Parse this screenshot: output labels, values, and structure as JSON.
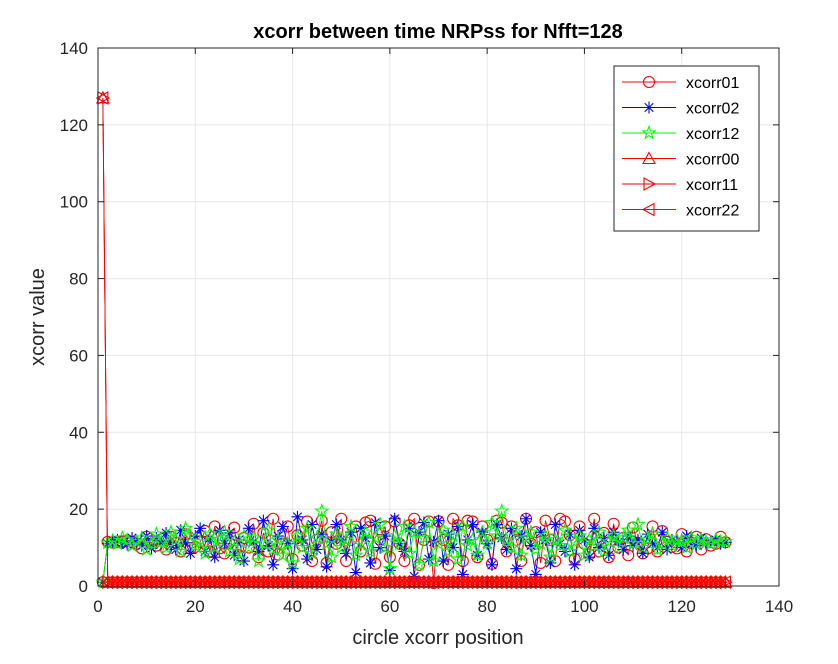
{
  "chart_data": {
    "type": "line",
    "title": "xcorr between time NRPss for Nfft=128",
    "xlabel": "circle xcorr position",
    "ylabel": "xcorr value",
    "xlim": [
      0,
      140
    ],
    "ylim": [
      0,
      140
    ],
    "xticks": [
      0,
      20,
      40,
      60,
      80,
      100,
      120,
      140
    ],
    "yticks": [
      0,
      20,
      40,
      60,
      80,
      100,
      120,
      140
    ],
    "grid": true,
    "legend_position": "top-right",
    "x": [
      1,
      2,
      3,
      4,
      5,
      6,
      7,
      8,
      9,
      10,
      11,
      12,
      13,
      14,
      15,
      16,
      17,
      18,
      19,
      20,
      21,
      22,
      23,
      24,
      25,
      26,
      27,
      28,
      29,
      30,
      31,
      32,
      33,
      34,
      35,
      36,
      37,
      38,
      39,
      40,
      41,
      42,
      43,
      44,
      45,
      46,
      47,
      48,
      49,
      50,
      51,
      52,
      53,
      54,
      55,
      56,
      57,
      58,
      59,
      60,
      61,
      62,
      63,
      64,
      65,
      66,
      67,
      68,
      69,
      70,
      71,
      72,
      73,
      74,
      75,
      76,
      77,
      78,
      79,
      80,
      81,
      82,
      83,
      84,
      85,
      86,
      87,
      88,
      89,
      90,
      91,
      92,
      93,
      94,
      95,
      96,
      97,
      98,
      99,
      100,
      101,
      102,
      103,
      104,
      105,
      106,
      107,
      108,
      109,
      110,
      111,
      112,
      113,
      114,
      115,
      116,
      117,
      118,
      119,
      120,
      121,
      122,
      123,
      124,
      125,
      126,
      127,
      128,
      129
    ],
    "series": [
      {
        "name": "xcorr01",
        "color": "#ff0000",
        "marker": "circle",
        "values": [
          1.0,
          11.5,
          11.3,
          11.4,
          11.6,
          11.9,
          11.5,
          11.0,
          9.8,
          12.8,
          11.0,
          10.5,
          12.2,
          9.5,
          12.8,
          11.2,
          9.0,
          13.5,
          9.8,
          10.2,
          11.5,
          14.3,
          9.0,
          15.5,
          9.8,
          8.5,
          11.2,
          15.2,
          8.0,
          12.5,
          10.0,
          16.2,
          7.5,
          13.8,
          9.0,
          17.5,
          8.2,
          11.0,
          15.5,
          7.0,
          13.2,
          10.5,
          16.8,
          6.5,
          12.0,
          17.0,
          6.0,
          14.0,
          11.0,
          17.5,
          6.5,
          12.0,
          15.5,
          9.0,
          16.5,
          17.0,
          5.8,
          12.0,
          15.5,
          7.5,
          16.8,
          11.0,
          6.5,
          15.8,
          17.5,
          5.5,
          12.0,
          16.8,
          0.8,
          16.8,
          12.0,
          5.5,
          17.5,
          15.8,
          6.5,
          17.0,
          16.8,
          7.5,
          15.5,
          12.0,
          5.8,
          17.0,
          16.5,
          9.0,
          15.5,
          12.0,
          6.5,
          17.5,
          11.0,
          14.0,
          6.0,
          17.0,
          12.0,
          6.5,
          17.5,
          16.8,
          13.2,
          7.0,
          15.5,
          11.0,
          8.2,
          17.5,
          9.0,
          13.8,
          7.5,
          16.2,
          10.0,
          12.5,
          8.0,
          15.2,
          11.2,
          8.5,
          9.8,
          15.5,
          9.0,
          14.3,
          11.5,
          10.2,
          9.8,
          13.5,
          9.0,
          11.2,
          12.8,
          9.5,
          12.2,
          10.5,
          11.0,
          12.8,
          11.4
        ]
      },
      {
        "name": "xcorr02",
        "color": "#0000ff",
        "marker": "star",
        "values": [
          1.0,
          11.0,
          11.6,
          12.0,
          11.2,
          10.8,
          12.5,
          11.5,
          10.5,
          13.0,
          9.8,
          12.5,
          11.0,
          13.8,
          10.5,
          9.5,
          14.5,
          11.2,
          8.5,
          13.0,
          15.0,
          9.0,
          12.5,
          7.5,
          14.5,
          11.0,
          13.8,
          8.0,
          12.0,
          6.5,
          15.0,
          11.5,
          9.0,
          17.0,
          10.5,
          5.5,
          13.0,
          15.5,
          11.0,
          4.5,
          18.0,
          12.0,
          7.0,
          16.0,
          9.5,
          13.5,
          5.0,
          11.5,
          16.0,
          12.0,
          8.5,
          14.0,
          3.5,
          15.0,
          12.5,
          6.0,
          16.5,
          10.0,
          13.0,
          4.0,
          17.5,
          11.0,
          9.0,
          15.0,
          2.5,
          14.0,
          16.5,
          7.0,
          11.5,
          17.0,
          6.5,
          13.5,
          10.0,
          15.5,
          3.0,
          12.0,
          16.0,
          8.0,
          14.0,
          11.0,
          5.5,
          16.0,
          12.5,
          9.5,
          15.0,
          4.5,
          13.0,
          17.5,
          10.5,
          3.0,
          14.0,
          12.0,
          6.0,
          16.0,
          11.0,
          9.0,
          13.5,
          5.5,
          14.5,
          12.0,
          7.5,
          15.0,
          10.0,
          12.5,
          8.0,
          14.0,
          11.5,
          9.5,
          13.0,
          10.5,
          12.0,
          8.5,
          13.5,
          11.0,
          10.0,
          14.0,
          9.5,
          12.0,
          11.5,
          10.0,
          13.0,
          11.0,
          10.5,
          12.5,
          11.0,
          11.5,
          12.0,
          11.0,
          11.3
        ]
      },
      {
        "name": "xcorr12",
        "color": "#00ff00",
        "marker": "pentagram",
        "values": [
          1.0,
          11.2,
          11.8,
          11.0,
          12.5,
          12.0,
          10.5,
          11.5,
          12.5,
          9.5,
          11.0,
          13.5,
          11.5,
          10.0,
          14.0,
          12.0,
          9.0,
          15.0,
          13.0,
          10.5,
          11.5,
          8.5,
          13.5,
          10.0,
          12.0,
          14.0,
          9.0,
          11.5,
          7.0,
          13.0,
          10.0,
          12.5,
          6.5,
          11.0,
          14.5,
          9.5,
          12.0,
          8.0,
          11.0,
          6.0,
          13.0,
          10.0,
          15.0,
          8.5,
          12.5,
          19.5,
          11.0,
          7.5,
          13.5,
          10.0,
          12.0,
          15.5,
          8.0,
          11.0,
          14.0,
          9.0,
          12.5,
          16.0,
          10.0,
          4.5,
          13.0,
          11.0,
          15.5,
          8.5,
          14.0,
          5.5,
          12.5,
          16.5,
          6.5,
          11.0,
          14.5,
          9.0,
          13.0,
          7.0,
          15.5,
          10.5,
          12.0,
          8.0,
          14.0,
          11.0,
          16.5,
          13.0,
          19.5,
          12.0,
          10.0,
          15.0,
          8.0,
          12.5,
          14.0,
          9.5,
          11.0,
          13.0,
          7.5,
          12.0,
          10.5,
          14.5,
          9.0,
          11.5,
          13.0,
          8.0,
          12.0,
          10.5,
          14.0,
          9.0,
          11.5,
          13.0,
          10.0,
          12.5,
          14.5,
          11.0,
          16.0,
          10.0,
          12.0,
          13.5,
          9.5,
          11.0,
          12.5,
          10.5,
          12.0,
          11.5,
          10.0,
          12.5,
          11.0,
          12.0,
          11.5,
          11.0,
          12.0,
          11.5,
          11.5
        ]
      },
      {
        "name": "xcorr00",
        "color": "#ff0000",
        "marker": "triangle-up",
        "values": [
          127,
          1,
          1,
          1,
          1,
          1,
          1,
          1,
          1,
          1,
          1,
          1,
          1,
          1,
          1,
          1,
          1,
          1,
          1,
          1,
          1,
          1,
          1,
          1,
          1,
          1,
          1,
          1,
          1,
          1,
          1,
          1,
          1,
          1,
          1,
          1,
          1,
          1,
          1,
          1,
          1,
          1,
          1,
          1,
          1,
          1,
          1,
          1,
          1,
          1,
          1,
          1,
          1,
          1,
          1,
          1,
          1,
          1,
          1,
          1,
          1,
          1,
          1,
          1,
          1,
          1,
          1,
          1,
          1,
          1,
          1,
          1,
          1,
          1,
          1,
          1,
          1,
          1,
          1,
          1,
          1,
          1,
          1,
          1,
          1,
          1,
          1,
          1,
          1,
          1,
          1,
          1,
          1,
          1,
          1,
          1,
          1,
          1,
          1,
          1,
          1,
          1,
          1,
          1,
          1,
          1,
          1,
          1,
          1,
          1,
          1,
          1,
          1,
          1,
          1,
          1,
          1,
          1,
          1,
          1,
          1,
          1,
          1,
          1,
          1,
          1,
          1,
          1,
          1
        ]
      },
      {
        "name": "xcorr11",
        "color": "#ff0000",
        "marker": "triangle-right",
        "values": [
          127,
          1,
          1,
          1,
          1,
          1,
          1,
          1,
          1,
          1,
          1,
          1,
          1,
          1,
          1,
          1,
          1,
          1,
          1,
          1,
          1,
          1,
          1,
          1,
          1,
          1,
          1,
          1,
          1,
          1,
          1,
          1,
          1,
          1,
          1,
          1,
          1,
          1,
          1,
          1,
          1,
          1,
          1,
          1,
          1,
          1,
          1,
          1,
          1,
          1,
          1,
          1,
          1,
          1,
          1,
          1,
          1,
          1,
          1,
          1,
          1,
          1,
          1,
          1,
          1,
          1,
          1,
          1,
          1,
          1,
          1,
          1,
          1,
          1,
          1,
          1,
          1,
          1,
          1,
          1,
          1,
          1,
          1,
          1,
          1,
          1,
          1,
          1,
          1,
          1,
          1,
          1,
          1,
          1,
          1,
          1,
          1,
          1,
          1,
          1,
          1,
          1,
          1,
          1,
          1,
          1,
          1,
          1,
          1,
          1,
          1,
          1,
          1,
          1,
          1,
          1,
          1,
          1,
          1,
          1,
          1,
          1,
          1,
          1,
          1,
          1,
          1,
          1,
          1
        ]
      },
      {
        "name": "xcorr22",
        "color": "#ff0000",
        "marker": "triangle-left",
        "values": [
          127,
          1,
          1,
          1,
          1,
          1,
          1,
          1,
          1,
          1,
          1,
          1,
          1,
          1,
          1,
          1,
          1,
          1,
          1,
          1,
          1,
          1,
          1,
          1,
          1,
          1,
          1,
          1,
          1,
          1,
          1,
          1,
          1,
          1,
          1,
          1,
          1,
          1,
          1,
          1,
          1,
          1,
          1,
          1,
          1,
          1,
          1,
          1,
          1,
          1,
          1,
          1,
          1,
          1,
          1,
          1,
          1,
          1,
          1,
          1,
          1,
          1,
          1,
          1,
          1,
          1,
          1,
          1,
          1,
          1,
          1,
          1,
          1,
          1,
          1,
          1,
          1,
          1,
          1,
          1,
          1,
          1,
          1,
          1,
          1,
          1,
          1,
          1,
          1,
          1,
          1,
          1,
          1,
          1,
          1,
          1,
          1,
          1,
          1,
          1,
          1,
          1,
          1,
          1,
          1,
          1,
          1,
          1,
          1,
          1,
          1,
          1,
          1,
          1,
          1,
          1,
          1,
          1,
          1,
          1,
          1,
          1,
          1,
          1,
          1,
          1,
          1,
          1,
          1
        ]
      }
    ]
  }
}
